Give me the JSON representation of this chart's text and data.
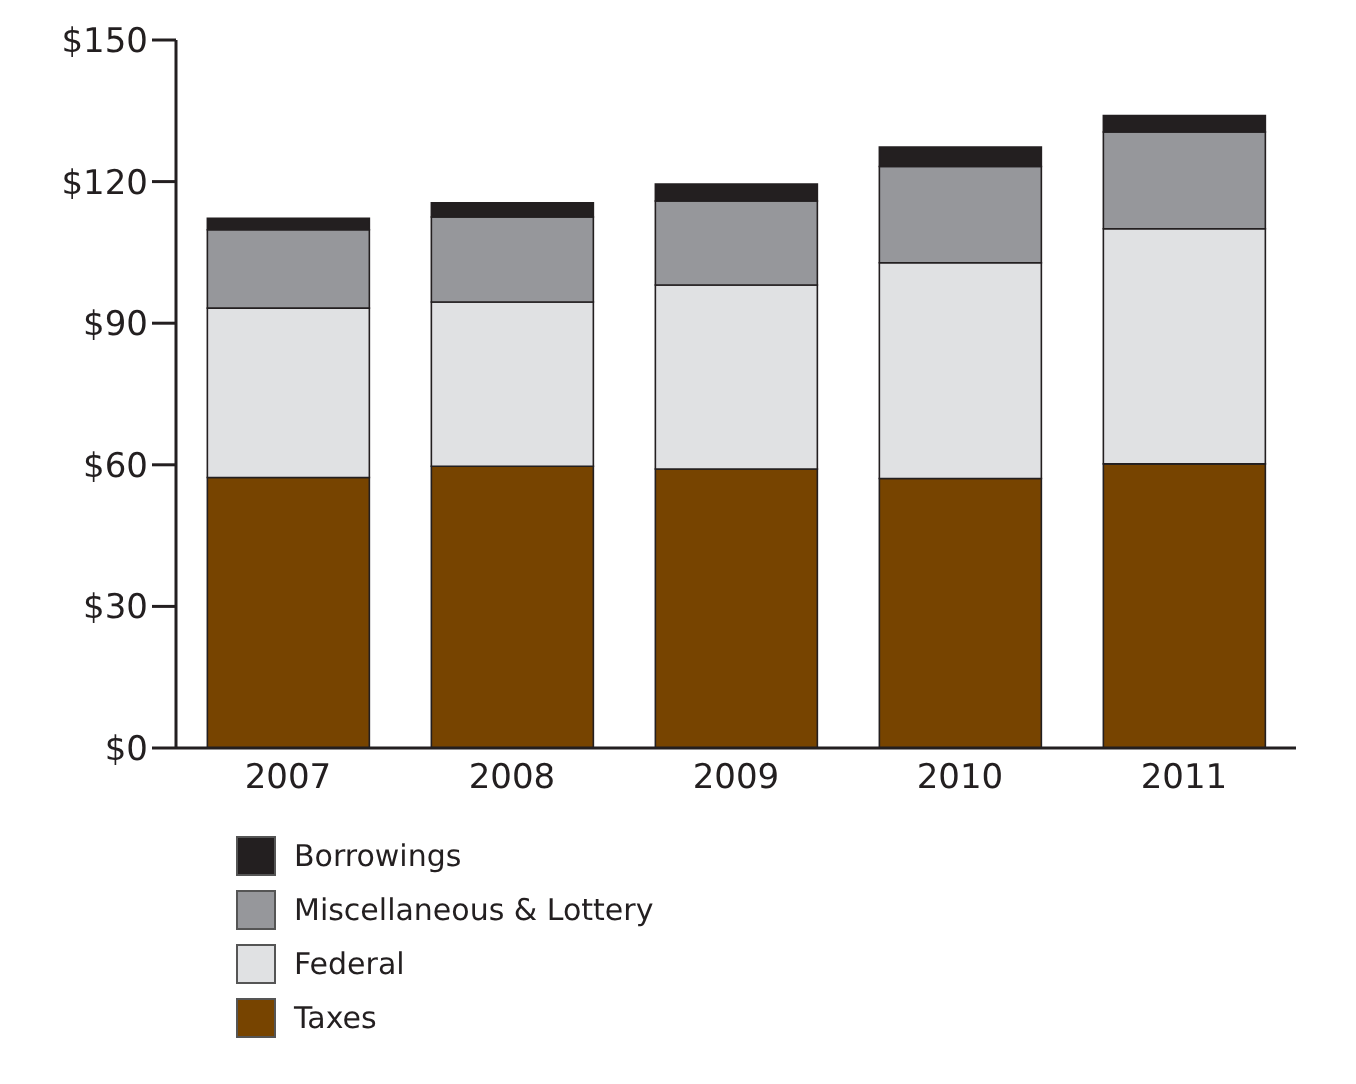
{
  "chart_data": {
    "type": "bar",
    "stacked": true,
    "categories": [
      "2007",
      "2008",
      "2009",
      "2010",
      "2011"
    ],
    "series": [
      {
        "name": "Taxes",
        "color": "#774400",
        "values": [
          57.3,
          59.7,
          59.1,
          57.1,
          60.2
        ]
      },
      {
        "name": "Federal",
        "color": "#e0e1e3",
        "values": [
          35.9,
          34.8,
          39.0,
          45.7,
          49.8
        ]
      },
      {
        "name": "Miscellaneous & Lottery",
        "color": "#96979b",
        "values": [
          16.6,
          18.0,
          17.8,
          20.4,
          20.5
        ]
      },
      {
        "name": "Borrowings",
        "color": "#231f20",
        "values": [
          2.4,
          3.0,
          3.6,
          4.1,
          3.5
        ]
      }
    ],
    "ylim": [
      0,
      150
    ],
    "yticks": [
      {
        "value": 0,
        "label": "$0"
      },
      {
        "value": 30,
        "label": "$30"
      },
      {
        "value": 60,
        "label": "$60"
      },
      {
        "value": 90,
        "label": "$90"
      },
      {
        "value": 120,
        "label": "$120"
      },
      {
        "value": 150,
        "label": "$150"
      }
    ],
    "grid": false,
    "legend": "bottom"
  }
}
